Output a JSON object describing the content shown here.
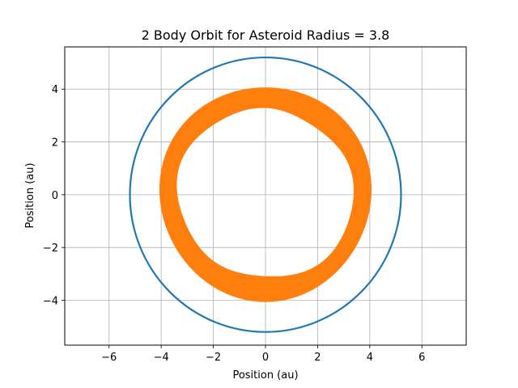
{
  "chart_data": {
    "type": "line",
    "title": "2 Body Orbit for Asteroid Radius = 3.8",
    "xlabel": "Position (au)",
    "ylabel": "Position (au)",
    "xlim": [
      -7.7,
      7.7
    ],
    "ylim": [
      -5.7,
      5.6
    ],
    "x_ticks": [
      -6,
      -4,
      -2,
      0,
      2,
      4,
      6
    ],
    "y_ticks": [
      -4,
      -2,
      0,
      2,
      4
    ],
    "x_tick_labels": [
      "−6",
      "−4",
      "−2",
      "0",
      "2",
      "4",
      "6"
    ],
    "y_tick_labels": [
      "−4",
      "−2",
      "0",
      "2",
      "4"
    ],
    "grid": true,
    "aspect": "equal",
    "series": [
      {
        "color": "#1f77b4",
        "shape": "circle",
        "center": [
          0,
          0
        ],
        "radius": 5.2
      },
      {
        "color": "#ff7f0e",
        "shape": "precessing-ring",
        "center": [
          0.0,
          0.05
        ],
        "radius_min": 3.3,
        "radius_max": 4.05
      }
    ]
  }
}
